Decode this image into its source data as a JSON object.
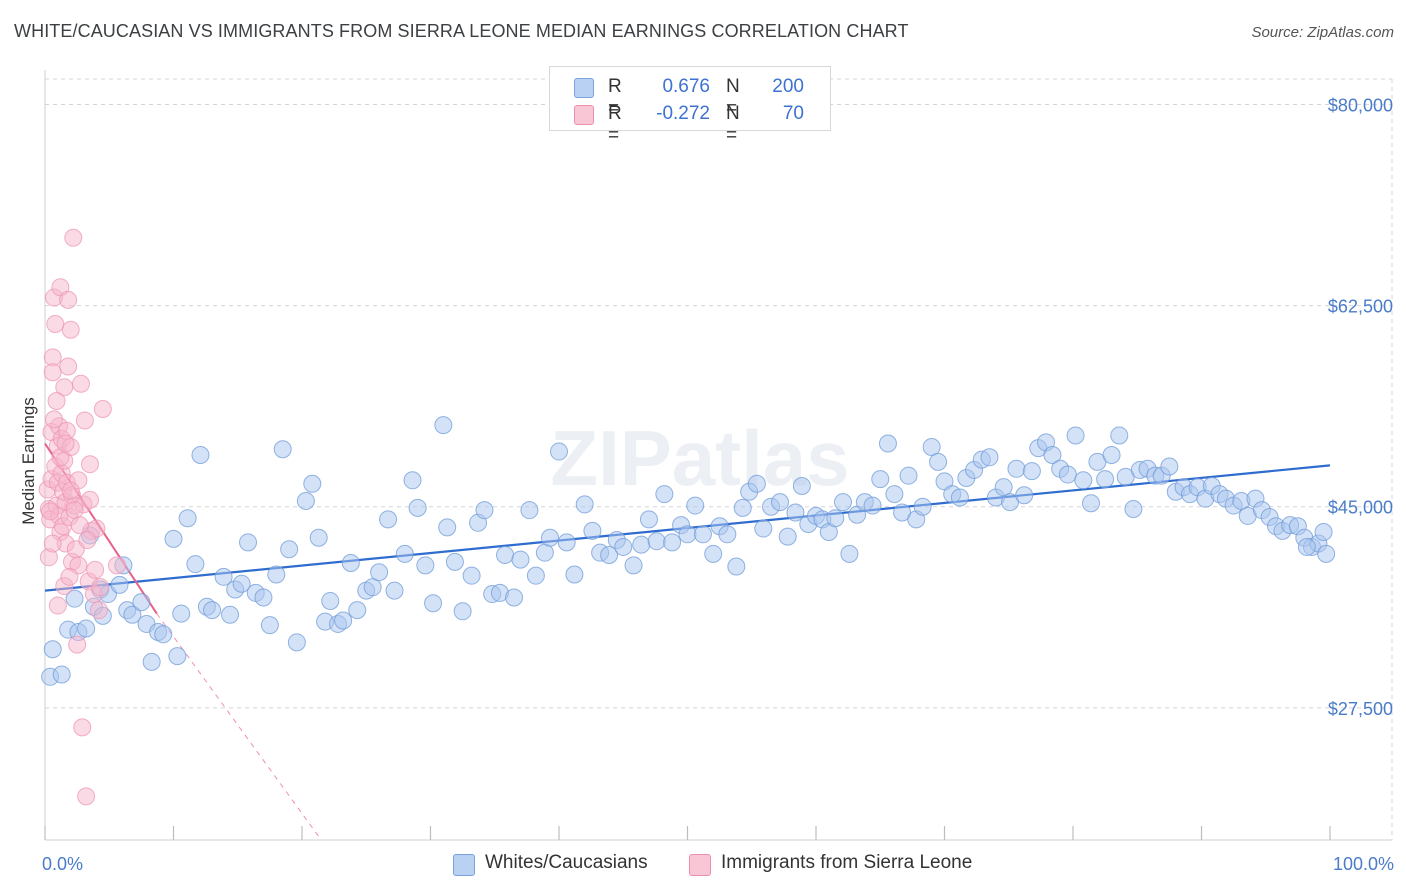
{
  "title": "WHITE/CAUCASIAN VS IMMIGRANTS FROM SIERRA LEONE MEDIAN EARNINGS CORRELATION CHART",
  "source": "Source: ZipAtlas.com",
  "watermark": "ZIPatlas",
  "colors": {
    "blue": "#4a7cc9",
    "blue_fill": "#a9c6ef",
    "blue_line": "#2f6ccf",
    "pink_fill": "#f6b6cb",
    "pink_line": "#e8608a",
    "grid": "#d5d5d5"
  },
  "legend": {
    "rows": [
      {
        "r_label": "R =",
        "r_value": "0.676",
        "n_label": "N =",
        "n_value": "200"
      },
      {
        "r_label": "R =",
        "r_value": "-0.272",
        "n_label": "N =",
        "n_value": "70"
      }
    ]
  },
  "bottom_legend": [
    "Whites/Caucasians",
    "Immigrants from Sierra Leone"
  ],
  "chart_data": {
    "type": "scatter",
    "xlabel": "",
    "ylabel": "Median Earnings",
    "xlim": [
      0,
      100
    ],
    "ylim": [
      16000,
      83000
    ],
    "x_tick_labels": [
      "0.0%",
      "100.0%"
    ],
    "y_ticks": [
      80000,
      62500,
      45000,
      27500
    ],
    "y_tick_labels": [
      "$80,000",
      "$62,500",
      "$45,000",
      "$27,500"
    ],
    "grid": true,
    "series": [
      {
        "name": "Whites/Caucasians",
        "trend": {
          "x": [
            0,
            100
          ],
          "y": [
            37700,
            48600
          ]
        },
        "points": [
          [
            0.4,
            30200
          ],
          [
            0.6,
            32600
          ],
          [
            1.3,
            30400
          ],
          [
            1.8,
            34300
          ],
          [
            2.3,
            37000
          ],
          [
            2.6,
            34100
          ],
          [
            3.2,
            34400
          ],
          [
            3.5,
            42500
          ],
          [
            3.8,
            36300
          ],
          [
            4.3,
            37800
          ],
          [
            4.5,
            35500
          ],
          [
            4.9,
            37400
          ],
          [
            5.8,
            38200
          ],
          [
            6.1,
            39900
          ],
          [
            6.4,
            36000
          ],
          [
            6.8,
            35600
          ],
          [
            7.5,
            36700
          ],
          [
            7.9,
            34800
          ],
          [
            8.3,
            31500
          ],
          [
            8.8,
            34100
          ],
          [
            9.2,
            33900
          ],
          [
            10.0,
            42200
          ],
          [
            10.3,
            32000
          ],
          [
            10.6,
            35700
          ],
          [
            11.1,
            44000
          ],
          [
            11.7,
            40000
          ],
          [
            12.1,
            49500
          ],
          [
            12.6,
            36300
          ],
          [
            13.0,
            36000
          ],
          [
            13.9,
            38900
          ],
          [
            14.4,
            35600
          ],
          [
            14.8,
            37800
          ],
          [
            15.3,
            38300
          ],
          [
            15.8,
            41900
          ],
          [
            16.4,
            37500
          ],
          [
            17.0,
            37100
          ],
          [
            17.5,
            34700
          ],
          [
            18.0,
            39100
          ],
          [
            18.5,
            50000
          ],
          [
            19.0,
            41300
          ],
          [
            19.6,
            33200
          ],
          [
            20.3,
            45500
          ],
          [
            20.8,
            47000
          ],
          [
            21.3,
            42300
          ],
          [
            21.8,
            35000
          ],
          [
            22.2,
            36800
          ],
          [
            22.8,
            34800
          ],
          [
            23.2,
            35100
          ],
          [
            23.8,
            40100
          ],
          [
            24.3,
            36000
          ],
          [
            25.0,
            37700
          ],
          [
            25.5,
            38000
          ],
          [
            26.0,
            39300
          ],
          [
            26.7,
            43900
          ],
          [
            27.2,
            37700
          ],
          [
            28.0,
            40900
          ],
          [
            28.6,
            47300
          ],
          [
            29.0,
            44900
          ],
          [
            29.6,
            39900
          ],
          [
            30.2,
            36600
          ],
          [
            31.0,
            52100
          ],
          [
            31.3,
            43200
          ],
          [
            31.9,
            40200
          ],
          [
            32.5,
            35900
          ],
          [
            33.2,
            39000
          ],
          [
            33.7,
            43600
          ],
          [
            34.2,
            44700
          ],
          [
            34.8,
            37400
          ],
          [
            35.4,
            37500
          ],
          [
            35.8,
            40800
          ],
          [
            36.5,
            37100
          ],
          [
            37.0,
            40400
          ],
          [
            37.7,
            44700
          ],
          [
            38.2,
            39000
          ],
          [
            38.9,
            41000
          ],
          [
            39.3,
            42300
          ],
          [
            40.0,
            49800
          ],
          [
            40.6,
            41900
          ],
          [
            41.2,
            39100
          ],
          [
            42.0,
            45200
          ],
          [
            42.6,
            42900
          ],
          [
            43.2,
            41000
          ],
          [
            43.9,
            40800
          ],
          [
            44.5,
            42100
          ],
          [
            45.0,
            41500
          ],
          [
            45.8,
            39900
          ],
          [
            46.4,
            41700
          ],
          [
            47.0,
            43900
          ],
          [
            47.6,
            42000
          ],
          [
            48.2,
            46100
          ],
          [
            48.8,
            41900
          ],
          [
            49.5,
            43400
          ],
          [
            50.0,
            42600
          ],
          [
            50.6,
            45100
          ],
          [
            51.2,
            42600
          ],
          [
            52.0,
            40900
          ],
          [
            52.5,
            43300
          ],
          [
            53.1,
            42600
          ],
          [
            53.8,
            39800
          ],
          [
            54.3,
            44900
          ],
          [
            54.8,
            46300
          ],
          [
            55.4,
            47000
          ],
          [
            55.9,
            43100
          ],
          [
            56.5,
            45000
          ],
          [
            57.2,
            45400
          ],
          [
            57.8,
            42400
          ],
          [
            58.4,
            44500
          ],
          [
            58.9,
            46800
          ],
          [
            59.4,
            43500
          ],
          [
            60.0,
            44200
          ],
          [
            60.5,
            43900
          ],
          [
            61.0,
            42800
          ],
          [
            61.5,
            44000
          ],
          [
            62.1,
            45400
          ],
          [
            62.6,
            40900
          ],
          [
            63.2,
            44300
          ],
          [
            63.8,
            45400
          ],
          [
            64.4,
            45100
          ],
          [
            65.0,
            47400
          ],
          [
            65.6,
            50500
          ],
          [
            66.1,
            46100
          ],
          [
            66.7,
            44500
          ],
          [
            67.2,
            47700
          ],
          [
            67.8,
            43900
          ],
          [
            68.3,
            45000
          ],
          [
            69.0,
            50200
          ],
          [
            69.5,
            48900
          ],
          [
            70.0,
            47200
          ],
          [
            70.6,
            46100
          ],
          [
            71.2,
            45800
          ],
          [
            71.7,
            47500
          ],
          [
            72.3,
            48200
          ],
          [
            72.9,
            49100
          ],
          [
            73.5,
            49300
          ],
          [
            74.0,
            45800
          ],
          [
            74.6,
            46700
          ],
          [
            75.1,
            45400
          ],
          [
            75.6,
            48300
          ],
          [
            76.2,
            46000
          ],
          [
            76.8,
            48100
          ],
          [
            77.3,
            50100
          ],
          [
            77.9,
            50600
          ],
          [
            78.4,
            49500
          ],
          [
            79.0,
            48300
          ],
          [
            79.6,
            47800
          ],
          [
            80.2,
            51200
          ],
          [
            80.8,
            47300
          ],
          [
            81.4,
            45300
          ],
          [
            81.9,
            48900
          ],
          [
            82.5,
            47400
          ],
          [
            83.0,
            49500
          ],
          [
            83.6,
            51200
          ],
          [
            84.1,
            47600
          ],
          [
            84.7,
            44800
          ],
          [
            85.2,
            48200
          ],
          [
            85.8,
            48300
          ],
          [
            86.4,
            47700
          ],
          [
            86.9,
            47700
          ],
          [
            87.5,
            48500
          ],
          [
            88.0,
            46300
          ],
          [
            88.6,
            46700
          ],
          [
            89.1,
            46100
          ],
          [
            89.7,
            46700
          ],
          [
            90.3,
            45700
          ],
          [
            90.8,
            46800
          ],
          [
            91.4,
            46100
          ],
          [
            91.9,
            45700
          ],
          [
            92.5,
            45100
          ],
          [
            93.1,
            45500
          ],
          [
            93.6,
            44200
          ],
          [
            94.2,
            45700
          ],
          [
            94.7,
            44700
          ],
          [
            95.3,
            44100
          ],
          [
            95.8,
            43300
          ],
          [
            96.3,
            42900
          ],
          [
            96.9,
            43400
          ],
          [
            97.5,
            43300
          ],
          [
            98.0,
            42300
          ],
          [
            98.6,
            41500
          ],
          [
            99.1,
            41800
          ],
          [
            99.5,
            42800
          ],
          [
            99.7,
            40900
          ],
          [
            98.2,
            41500
          ]
        ]
      },
      {
        "name": "Immigrants from Sierra Leone",
        "trend": {
          "x": [
            0,
            8.7
          ],
          "y": [
            50500,
            35700
          ]
        },
        "trend_dashed": {
          "x": [
            8.7,
            21.5
          ],
          "y": [
            35700,
            16000
          ]
        },
        "points": [
          [
            0.2,
            46500
          ],
          [
            0.3,
            44800
          ],
          [
            0.4,
            43900
          ],
          [
            0.5,
            51500
          ],
          [
            0.5,
            47400
          ],
          [
            0.6,
            58000
          ],
          [
            0.6,
            56700
          ],
          [
            0.7,
            63200
          ],
          [
            0.8,
            48500
          ],
          [
            0.9,
            45100
          ],
          [
            1.0,
            50300
          ],
          [
            1.0,
            47100
          ],
          [
            1.1,
            44200
          ],
          [
            1.1,
            52000
          ],
          [
            1.2,
            64100
          ],
          [
            1.2,
            42800
          ],
          [
            1.3,
            50900
          ],
          [
            1.3,
            47900
          ],
          [
            1.4,
            46300
          ],
          [
            1.4,
            43300
          ],
          [
            1.5,
            55400
          ],
          [
            1.5,
            49000
          ],
          [
            1.6,
            45400
          ],
          [
            1.6,
            41800
          ],
          [
            1.7,
            51600
          ],
          [
            1.7,
            47100
          ],
          [
            1.8,
            63000
          ],
          [
            1.8,
            57200
          ],
          [
            1.9,
            44100
          ],
          [
            2.0,
            60400
          ],
          [
            2.0,
            50200
          ],
          [
            2.1,
            46000
          ],
          [
            2.1,
            40200
          ],
          [
            2.2,
            68400
          ],
          [
            2.3,
            45100
          ],
          [
            2.4,
            41300
          ],
          [
            2.5,
            33000
          ],
          [
            2.6,
            39900
          ],
          [
            2.8,
            55700
          ],
          [
            3.0,
            45200
          ],
          [
            3.2,
            19800
          ],
          [
            3.4,
            38500
          ],
          [
            3.5,
            48700
          ],
          [
            3.6,
            42900
          ],
          [
            3.8,
            37400
          ],
          [
            4.0,
            43100
          ],
          [
            4.2,
            36000
          ],
          [
            4.5,
            53500
          ],
          [
            5.6,
            39900
          ],
          [
            0.3,
            40600
          ],
          [
            0.6,
            41800
          ],
          [
            0.9,
            54200
          ],
          [
            1.2,
            49300
          ],
          [
            1.5,
            38100
          ],
          [
            1.9,
            38900
          ],
          [
            2.3,
            44700
          ],
          [
            2.6,
            47300
          ],
          [
            3.1,
            52500
          ],
          [
            3.5,
            45600
          ],
          [
            3.9,
            39500
          ],
          [
            4.3,
            38000
          ],
          [
            2.9,
            25800
          ],
          [
            1.0,
            36400
          ],
          [
            0.4,
            44600
          ],
          [
            0.7,
            52600
          ],
          [
            1.6,
            50500
          ],
          [
            2.0,
            46400
          ],
          [
            2.7,
            43400
          ],
          [
            3.3,
            42100
          ],
          [
            0.8,
            60900
          ]
        ]
      }
    ]
  }
}
